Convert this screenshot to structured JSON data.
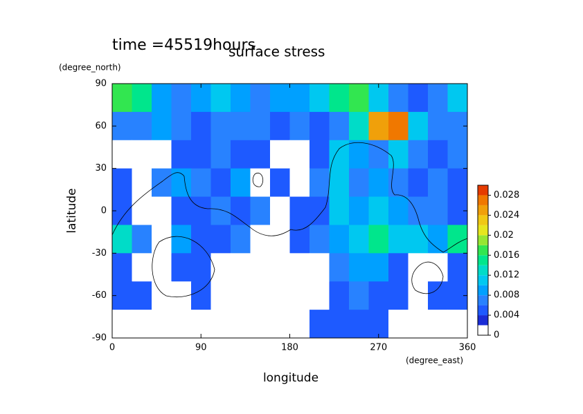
{
  "chart_data": {
    "type": "contour",
    "title": "surface stress",
    "subtitle": "time =45519hours",
    "x_label": "longitude",
    "x_unit": "(degree_east)",
    "y_label": "latitude",
    "y_unit": "(degree_north)",
    "x": [
      10,
      30,
      50,
      70,
      90,
      110,
      130,
      150,
      170,
      190,
      210,
      230,
      250,
      270,
      290,
      310,
      330,
      350
    ],
    "y": [
      80,
      60,
      40,
      20,
      0,
      -20,
      -40,
      -60,
      -80
    ],
    "z": [
      [
        0.016,
        0.014,
        0.008,
        0.006,
        0.008,
        0.01,
        0.008,
        0.006,
        0.008,
        0.008,
        0.01,
        0.014,
        0.016,
        0.01,
        0.006,
        0.004,
        0.006,
        0.01
      ],
      [
        0.006,
        0.006,
        0.008,
        0.006,
        0.004,
        0.006,
        0.006,
        0.006,
        0.004,
        0.006,
        0.004,
        0.006,
        0.012,
        0.024,
        0.026,
        0.01,
        0.006,
        0.006
      ],
      [
        0.001,
        0.001,
        0.001,
        0.004,
        0.004,
        0.006,
        0.004,
        0.004,
        0.001,
        0.001,
        0.004,
        0.01,
        0.008,
        0.006,
        0.01,
        0.006,
        0.004,
        0.006
      ],
      [
        0.004,
        0.001,
        0.006,
        0.008,
        0.006,
        0.004,
        0.008,
        0.001,
        0.004,
        0.001,
        0.006,
        0.01,
        0.006,
        0.008,
        0.006,
        0.004,
        0.006,
        0.004
      ],
      [
        0.004,
        0.001,
        0.001,
        0.004,
        0.004,
        0.006,
        0.004,
        0.006,
        0.001,
        0.004,
        0.004,
        0.01,
        0.008,
        0.01,
        0.008,
        0.006,
        0.006,
        0.004
      ],
      [
        0.012,
        0.006,
        0.001,
        0.008,
        0.004,
        0.004,
        0.006,
        0.001,
        0.001,
        0.004,
        0.006,
        0.008,
        0.01,
        0.014,
        0.01,
        0.01,
        0.008,
        0.014
      ],
      [
        0.004,
        0.001,
        0.001,
        0.004,
        0.004,
        0.001,
        0.001,
        0.001,
        0.001,
        0.001,
        0.001,
        0.006,
        0.008,
        0.008,
        0.004,
        0.001,
        0.001,
        0.004
      ],
      [
        0.004,
        0.004,
        0.001,
        0.001,
        0.004,
        0.001,
        0.001,
        0.001,
        0.001,
        0.001,
        0.001,
        0.004,
        0.006,
        0.004,
        0.004,
        0.001,
        0.004,
        0.004
      ],
      [
        0,
        0,
        0,
        0,
        0,
        0,
        0,
        0,
        0,
        0,
        0.004,
        0.004,
        0.004,
        0.004,
        0,
        0,
        0,
        0
      ]
    ],
    "xlim": [
      0,
      360
    ],
    "ylim": [
      -90,
      90
    ],
    "xticks": [
      0,
      90,
      180,
      270,
      360
    ],
    "yticks": [
      -90,
      -60,
      -30,
      0,
      30,
      60,
      90
    ],
    "levels": [
      0,
      0.002,
      0.004,
      0.006,
      0.008,
      0.01,
      0.012,
      0.014,
      0.016,
      0.018,
      0.02,
      0.022,
      0.024,
      0.026,
      0.028,
      0.03
    ],
    "colors": [
      "#ffffff",
      "#1a2cd6",
      "#1e5aff",
      "#2882ff",
      "#00a0ff",
      "#00c8f0",
      "#00dcc8",
      "#00e68c",
      "#32e650",
      "#96e632",
      "#e6e61e",
      "#f0c814",
      "#f0a00a",
      "#f07800",
      "#e63c00"
    ],
    "colorbar_ticks": [
      0,
      0.004,
      0.008,
      0.012,
      0.016,
      0.02,
      0.024,
      0.028
    ]
  }
}
